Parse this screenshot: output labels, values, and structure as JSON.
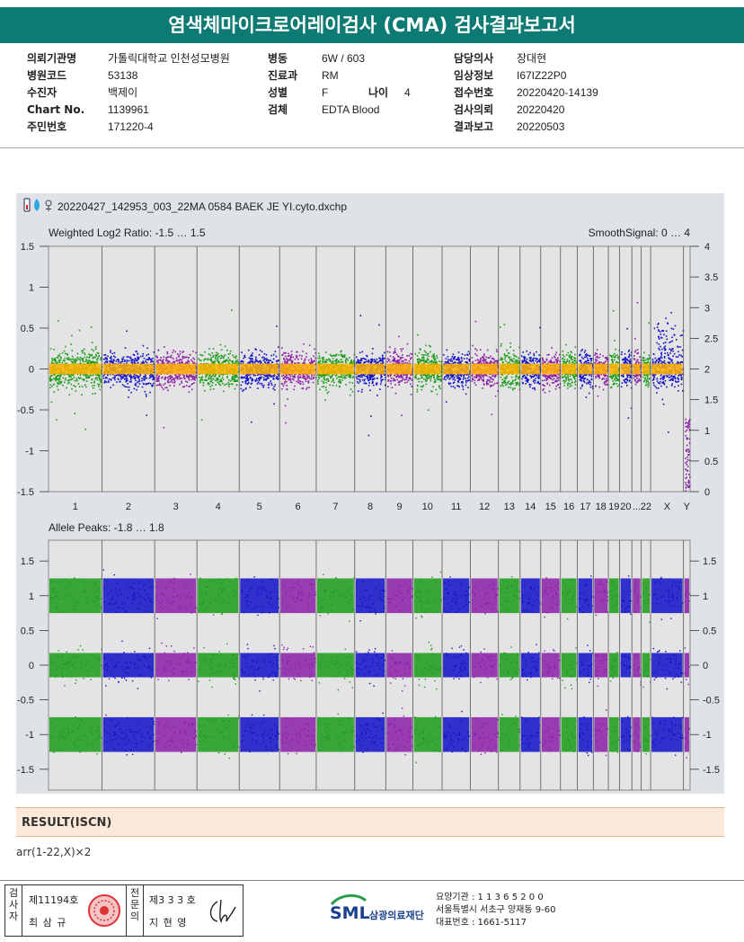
{
  "title": "염색체마이크로어레이검사 (CMA) 검사결과보고서",
  "info": {
    "col1": [
      {
        "label": "의뢰기관명",
        "value": "가톨릭대학교 인천성모병원"
      },
      {
        "label": "병원코드",
        "value": "53138"
      },
      {
        "label": "수진자",
        "value": "백제이"
      },
      {
        "label": "Chart No.",
        "value": "1139961"
      },
      {
        "label": "주민번호",
        "value": "171220-4"
      }
    ],
    "col2": [
      {
        "label": "병동",
        "value": "6W / 603"
      },
      {
        "label": "진료과",
        "value": "RM"
      },
      {
        "label": "성별",
        "value": "F"
      },
      {
        "label": "검체",
        "value": "EDTA Blood"
      }
    ],
    "age": {
      "label": "나이",
      "value": "4"
    },
    "col3": [
      {
        "label": "담당의사",
        "value": "장대현"
      },
      {
        "label": "임상정보",
        "value": "I67IZ22P0"
      },
      {
        "label": "접수번호",
        "value": "20220420-14139"
      },
      {
        "label": "검사의뢰",
        "value": "20220420"
      },
      {
        "label": "결과보고",
        "value": "20220503"
      }
    ]
  },
  "chart": {
    "file": "20220427_142953_003_22MA 0584 BAEK JE YI.cyto.dxchp",
    "top_label": "Weighted Log2 Ratio: -1.5 … 1.5",
    "top_right_label": "SmoothSignal: 0 … 4",
    "bottom_label": "Allele Peaks: -1.8 … 1.8",
    "chromosomes": [
      "1",
      "2",
      "3",
      "4",
      "5",
      "6",
      "7",
      "8",
      "9",
      "10",
      "11",
      "12",
      "13",
      "14",
      "15",
      "16",
      "17",
      "18",
      "19",
      "20",
      "...",
      "22",
      "X",
      "Y"
    ],
    "top_left_ticks": [
      "1.5",
      "1",
      "0.5",
      "0",
      "-0.5",
      "-1",
      "-1.5"
    ],
    "top_right_ticks": [
      "4",
      "3.5",
      "3",
      "2.5",
      "2",
      "1.5",
      "1",
      "0.5",
      "0"
    ],
    "bottom_left_ticks": [
      "1.5",
      "1",
      "0.5",
      "0",
      "-0.5",
      "-1",
      "-1.5"
    ],
    "bottom_right_ticks": [
      "1.5",
      "1",
      "0.5",
      "0",
      "-0.5",
      "-1",
      "-1.5"
    ],
    "colors": {
      "green": "#1a9c1a",
      "blue": "#1010c8",
      "purple": "#8a1fa8",
      "orange": "#ffb300"
    }
  },
  "result": {
    "heading": "RESULT(ISCN)",
    "text": "arr(1-22,X)×2"
  },
  "footer": {
    "tester_label": "검사자",
    "tester_no": "제11194호",
    "tester_name": "최 삼 규",
    "reviewer_label": "전문의",
    "reviewer_no": "제3 3 3 호",
    "reviewer_name": "지 현 영",
    "logo_text": "SML",
    "org_name": "삼광의료재단",
    "addr1": "요양기관 : 1 1 3 6 5 2 0 0",
    "addr2": "서울특별시 서초구 양재동 9-60",
    "addr3": "대표번호 : 1661-5117"
  }
}
